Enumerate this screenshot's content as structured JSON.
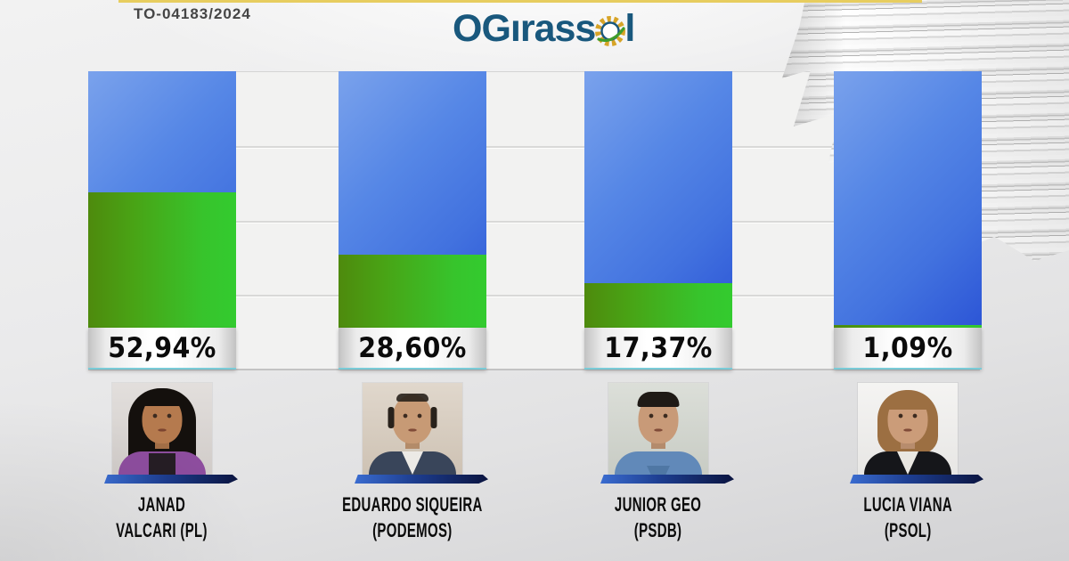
{
  "header": {
    "edition": "TO-04183/2024"
  },
  "logo": {
    "part1": "OG",
    "part2": "ırass",
    "part3": "l"
  },
  "colors": {
    "accent_yellow": "#e7cd5f",
    "logo_blue": "#19587d",
    "sunflower_gold": "#d7a427",
    "sunflower_leaf_green": "#3f9d2c",
    "bar_track_blue": "#4b7ae2",
    "bar_fill_green": "#3ec42d",
    "plate_cyan_underline": "#79cbd7",
    "ribbon_navy": "#0a1440"
  },
  "chart_data": {
    "type": "bar",
    "title": "",
    "categories": [
      "JANAD VALCARI (PL)",
      "EDUARDO SIQUEIRA (PODEMOS)",
      "JUNIOR GEO (PSDB)",
      "LUCIA VIANA (PSOL)"
    ],
    "values": [
      52.94,
      28.6,
      17.37,
      1.09
    ],
    "value_labels": [
      "52,94%",
      "28,60%",
      "17,37%",
      "1,09%"
    ],
    "unit": "%",
    "ylim": [
      0,
      100
    ],
    "grid": true,
    "legend": false,
    "bar_style": "green fill over blue remainder track"
  },
  "candidates": [
    {
      "pct": 52.94,
      "pct_label": "52,94%",
      "name_line1": "JANAD",
      "name_line2": "VALCARI (PL)",
      "photo": {
        "bg": "#d9d4d1",
        "skin": "#b57a4e",
        "hair": "#14100d",
        "top": "#8d4d9e",
        "shirt": "#251d24"
      }
    },
    {
      "pct": 28.6,
      "pct_label": "28,60%",
      "name_line1": "EDUARDO SIQUEIRA",
      "name_line2": "(PODEMOS)",
      "photo": {
        "bg": "#d6cabb",
        "skin": "#c79a75",
        "hair": "#28211b",
        "top": "#39455a",
        "shirt": "#eceae6"
      }
    },
    {
      "pct": 17.37,
      "pct_label": "17,37%",
      "name_line1": "JUNIOR GEO",
      "name_line2": "(PSDB)",
      "photo": {
        "bg": "#d0d4cc",
        "skin": "#c89a78",
        "hair": "#1f1a16",
        "top": "#6189b9",
        "shirt": "#4f77a4"
      }
    },
    {
      "pct": 1.09,
      "pct_label": "1,09%",
      "name_line1": "LUCIA VIANA",
      "name_line2": "(PSOL)",
      "photo": {
        "bg": "#f1f0ee",
        "skin": "#cb9c79",
        "hair": "#9c6f42",
        "top": "#15161a",
        "shirt": "#e9e7e2"
      }
    }
  ]
}
